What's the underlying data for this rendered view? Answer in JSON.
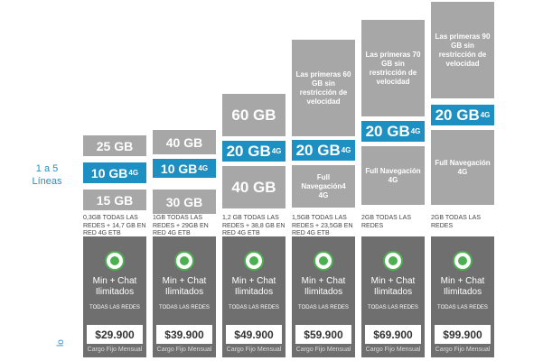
{
  "lines_label": "1 a 5\nLíneas",
  "side_mark": "lo",
  "plans": [
    {
      "segments": [
        {
          "text": "25 GB",
          "style": "gray",
          "h": 26
        },
        {
          "text": "10 GB",
          "sup": "4G",
          "style": "blue",
          "h": 26
        },
        {
          "text": "15 GB",
          "style": "gray",
          "h": 26
        }
      ],
      "extra": "0,3GB TODAS LAS REDES + 14,7 GB EN RED 4G ETB",
      "min_chat": "Min + Chat Ilimitados",
      "redes": "TODAS LAS REDES",
      "price": "$29.900",
      "cargo": "Cargo Fijo Mensual"
    },
    {
      "segments": [
        {
          "text": "40 GB",
          "style": "gray",
          "h": 30
        },
        {
          "text": "10 GB",
          "sup": "4G",
          "style": "blue",
          "h": 24
        },
        {
          "text": "30 GB",
          "style": "gray",
          "h": 30
        }
      ],
      "extra": "1GB TODAS LAS REDES + 29GB EN RED 4G ETB",
      "min_chat": "Min + Chat Ilimitados",
      "redes": "TODAS LAS REDES",
      "price": "$39.900",
      "cargo": "Cargo Fijo Mensual"
    },
    {
      "segments": [
        {
          "text": "60 GB",
          "style": "gray-big",
          "h": 50
        },
        {
          "text": "20 GB",
          "sup": "4G",
          "style": "blue-big",
          "h": 26
        },
        {
          "text": "40 GB",
          "style": "gray-big",
          "h": 50
        }
      ],
      "extra": "1,2 GB TODAS LAS REDES + 38,8 GB EN RED 4G ETB",
      "min_chat": "Min + Chat Ilimitados",
      "redes": "TODAS LAS REDES",
      "price": "$49.900",
      "cargo": "Cargo Fijo Mensual"
    },
    {
      "segments": [
        {
          "text": "Las primeras 60 GB sin restricción de velocidad",
          "style": "gray-txt",
          "h": 110
        },
        {
          "text": "20 GB",
          "sup": "4G",
          "style": "blue-big",
          "h": 26
        },
        {
          "text": "Full Navegación4 4G",
          "style": "gray-txt",
          "h": 50
        }
      ],
      "extra": "1,5GB TODAS LAS REDES + 23,5GB EN RED 4G ETB",
      "min_chat": "Min + Chat Ilimitados",
      "redes": "TODAS LAS REDES",
      "price": "$59.900",
      "cargo": "Cargo Fijo Mensual"
    },
    {
      "segments": [
        {
          "text": "Las primeras 70 GB sin restricción de velocidad",
          "style": "gray-txt",
          "h": 110
        },
        {
          "text": "20 GB",
          "sup": "4G",
          "style": "blue-big",
          "h": 26
        },
        {
          "text": "Full Navegación 4G",
          "style": "gray-txt",
          "h": 68
        }
      ],
      "extra": "2GB TODAS LAS REDES",
      "min_chat": "Min + Chat Ilimitados",
      "redes": "TODAS LAS REDES",
      "price": "$69.900",
      "cargo": "Cargo Fijo Mensual"
    },
    {
      "segments": [
        {
          "text": "Las primeras 90 GB sin restricción de velocidad",
          "style": "gray-txt",
          "h": 110
        },
        {
          "text": "20 GB",
          "sup": "4G",
          "style": "blue-big",
          "h": 26
        },
        {
          "text": "Full Navegación 4G",
          "style": "gray-txt",
          "h": 86
        }
      ],
      "extra": "2GB TODAS LAS REDES",
      "min_chat": "Min + Chat Ilimitados",
      "redes": "TODAS LAS REDES",
      "price": "$99.900",
      "cargo": "Cargo Fijo Mensual"
    }
  ]
}
